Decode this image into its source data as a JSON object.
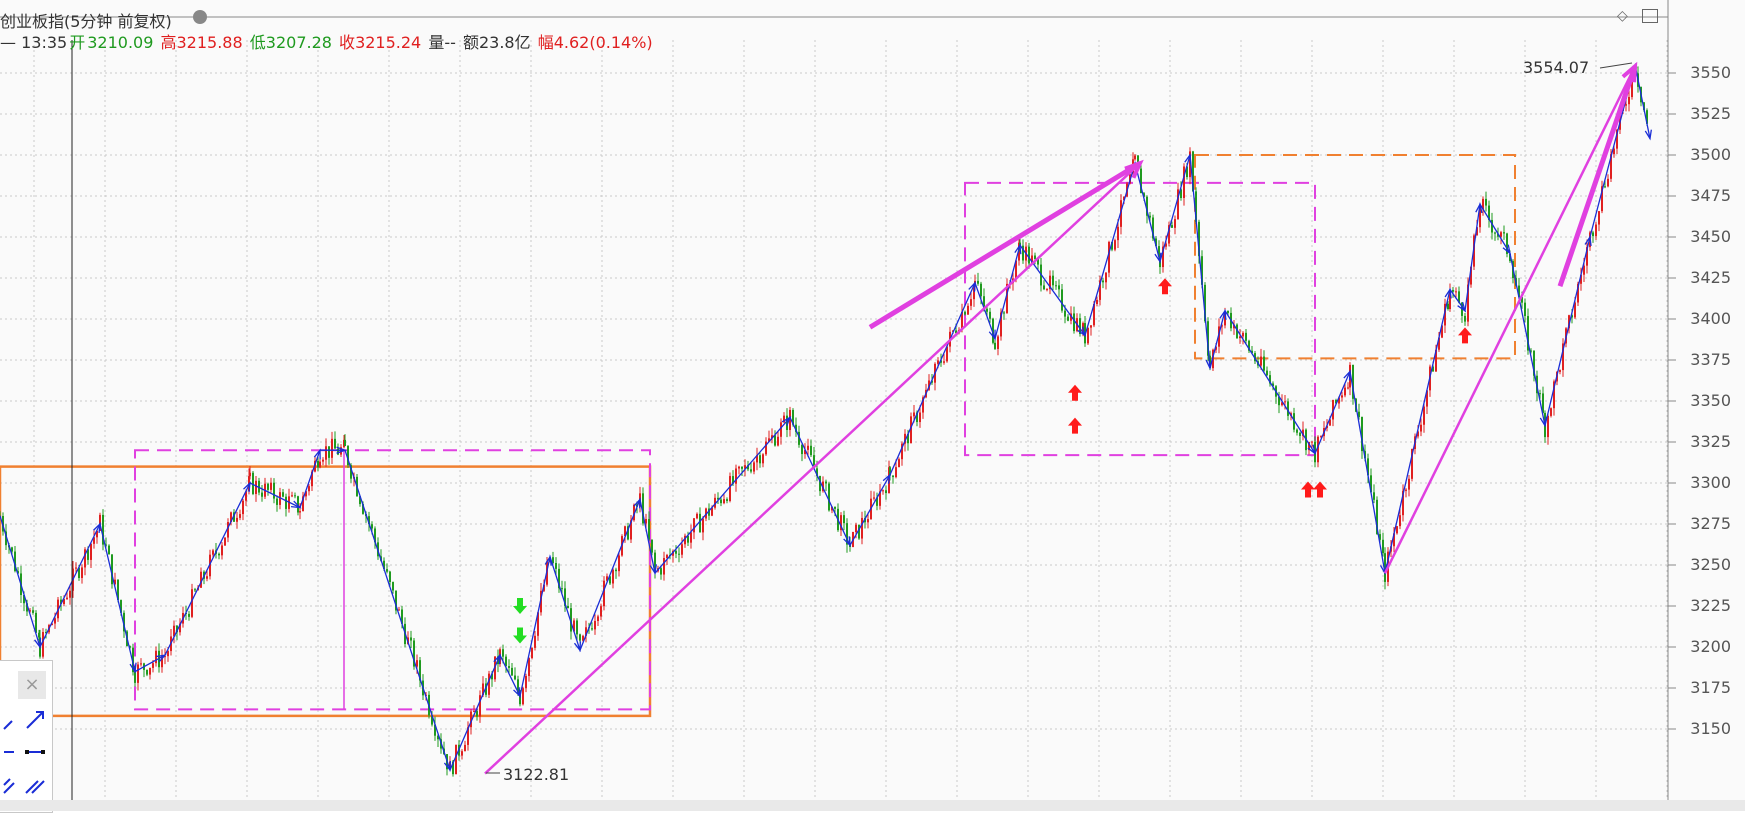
{
  "window": {
    "title": "创业板指(5分钟 前复权)"
  },
  "quote_bar": {
    "time": "— 13:35",
    "open_label": "开",
    "open": "3210.09",
    "high_label": "高",
    "high": "3215.88",
    "low_label": "低",
    "low": "3207.28",
    "close_label": "收",
    "close": "3215.24",
    "volume_label": "量--",
    "amount_label": "额23.8亿",
    "change_label": "幅",
    "change": "4.62(0.14%)"
  },
  "annotations": {
    "peak_label": "3554.07",
    "trough_label": "3122.81"
  },
  "colors": {
    "up": "#e02020",
    "down": "#1f9a1f",
    "zigzag": "#1a2dd6",
    "trend": "#e040e0",
    "box_orange": "#f08030",
    "grid": "#c9c9c9",
    "arrow_up": "#ff1a1a",
    "arrow_down": "#22dd22"
  },
  "icons": {
    "settings": "gear-icon",
    "diamond": "diamond-icon",
    "window": "window-icon"
  },
  "toolbox": {
    "close": "×"
  },
  "chart_data": {
    "type": "candlestick",
    "title": "创业板指(5分钟 前复权)",
    "y_ticks": [
      "3550",
      "3525",
      "3500",
      "3475",
      "3450",
      "3425",
      "3400",
      "3375",
      "3350",
      "3325",
      "3300",
      "3275",
      "3250",
      "3225",
      "3200",
      "3175",
      "3150"
    ],
    "ylim": [
      3115,
      3565
    ],
    "grid": true,
    "zigzag_points": [
      [
        0,
        3280
      ],
      [
        40,
        3200
      ],
      [
        100,
        3275
      ],
      [
        135,
        3185
      ],
      [
        165,
        3195
      ],
      [
        250,
        3300
      ],
      [
        300,
        3285
      ],
      [
        320,
        3320
      ],
      [
        345,
        3320
      ],
      [
        450,
        3125
      ],
      [
        500,
        3195
      ],
      [
        520,
        3170
      ],
      [
        550,
        3255
      ],
      [
        580,
        3198
      ],
      [
        640,
        3290
      ],
      [
        655,
        3245
      ],
      [
        790,
        3340
      ],
      [
        850,
        3262
      ],
      [
        890,
        3305
      ],
      [
        975,
        3422
      ],
      [
        995,
        3388
      ],
      [
        1020,
        3445
      ],
      [
        1085,
        3390
      ],
      [
        1135,
        3495
      ],
      [
        1160,
        3435
      ],
      [
        1190,
        3500
      ],
      [
        1210,
        3370
      ],
      [
        1225,
        3405
      ],
      [
        1315,
        3318
      ],
      [
        1350,
        3368
      ],
      [
        1385,
        3245
      ],
      [
        1450,
        3418
      ],
      [
        1465,
        3405
      ],
      [
        1480,
        3470
      ],
      [
        1510,
        3440
      ],
      [
        1545,
        3335
      ],
      [
        1590,
        3450
      ],
      [
        1635,
        3555
      ],
      [
        1650,
        3510
      ]
    ],
    "trend_lines": [
      {
        "from": [
          485,
          3122.81
        ],
        "to": [
          1140,
          3495
        ]
      },
      {
        "from": [
          1385,
          3245
        ],
        "to": [
          1635,
          3554.07
        ]
      }
    ],
    "boxes": [
      {
        "style": "solid",
        "color": "orange",
        "x": [
          0,
          650
        ],
        "y": [
          3158,
          3310
        ]
      },
      {
        "style": "dashed",
        "color": "magenta",
        "x": [
          135,
          650
        ],
        "y": [
          3162,
          3320
        ]
      },
      {
        "style": "dashed",
        "color": "magenta",
        "x": [
          965,
          1315
        ],
        "y": [
          3317,
          3483
        ]
      },
      {
        "style": "dashed",
        "color": "orange",
        "x": [
          1195,
          1515
        ],
        "y": [
          3376,
          3500
        ]
      }
    ],
    "signals": [
      {
        "type": "down",
        "x": 520,
        "y": 3225
      },
      {
        "type": "down",
        "x": 520,
        "y": 3207
      },
      {
        "type": "up",
        "x": 1075,
        "y": 3355
      },
      {
        "type": "up",
        "x": 1075,
        "y": 3335
      },
      {
        "type": "up",
        "x": 1165,
        "y": 3420
      },
      {
        "type": "up",
        "x": 1308,
        "y": 3296
      },
      {
        "type": "up",
        "x": 1320,
        "y": 3296
      },
      {
        "type": "up",
        "x": 1465,
        "y": 3390
      }
    ]
  }
}
